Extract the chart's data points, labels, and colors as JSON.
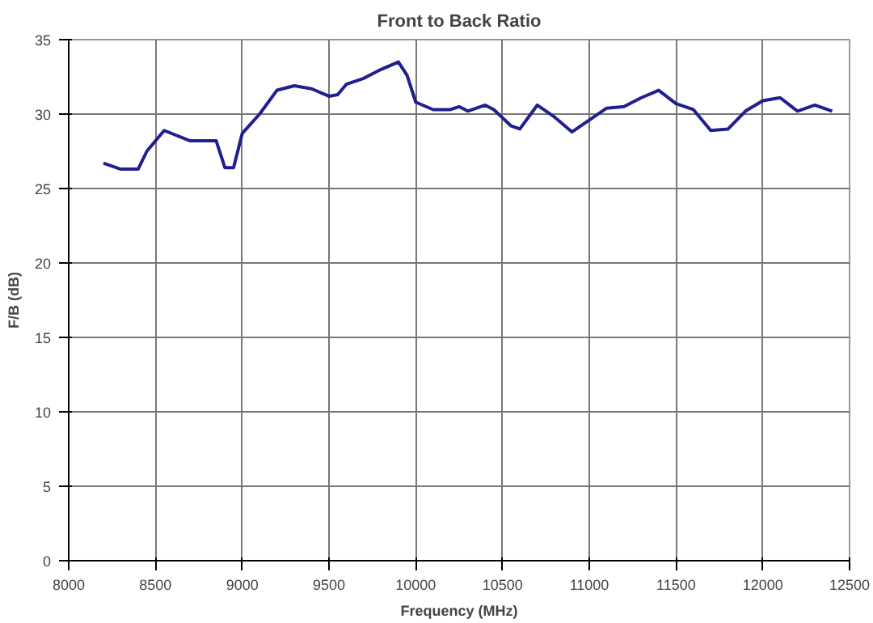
{
  "chart_data": {
    "type": "line",
    "title": "Front to Back Ratio",
    "xlabel": "Frequency (MHz)",
    "ylabel": "F/B (dB)",
    "x": [
      8200,
      8300,
      8400,
      8450,
      8550,
      8700,
      8850,
      8900,
      8950,
      9000,
      9100,
      9200,
      9300,
      9400,
      9500,
      9550,
      9600,
      9700,
      9800,
      9900,
      9950,
      10000,
      10100,
      10200,
      10250,
      10300,
      10400,
      10450,
      10550,
      10600,
      10700,
      10800,
      10900,
      11000,
      11100,
      11200,
      11300,
      11400,
      11500,
      11600,
      11700,
      11800,
      11900,
      12000,
      12100,
      12200,
      12300,
      12400
    ],
    "series": [
      {
        "color": "#1f1f8f",
        "values": [
          26.7,
          26.3,
          26.3,
          27.5,
          28.9,
          28.2,
          28.2,
          26.4,
          26.4,
          28.7,
          30.0,
          31.6,
          31.9,
          31.7,
          31.2,
          31.3,
          32.0,
          32.4,
          33.0,
          33.5,
          32.6,
          30.8,
          30.3,
          30.3,
          30.5,
          30.2,
          30.6,
          30.3,
          29.2,
          29.0,
          30.6,
          29.8,
          28.8,
          29.6,
          30.4,
          30.5,
          31.1,
          31.6,
          30.7,
          30.3,
          28.9,
          29.0,
          30.2,
          30.9,
          31.1,
          30.2,
          30.6,
          30.2
        ]
      }
    ],
    "xlim": [
      8000,
      12500
    ],
    "xticks": [
      8000,
      8500,
      9000,
      9500,
      10000,
      10500,
      11000,
      11500,
      12000,
      12500
    ],
    "ylim": [
      0,
      35
    ],
    "yticks": [
      0,
      5,
      10,
      15,
      20,
      25,
      30,
      35
    ],
    "grid": true
  }
}
